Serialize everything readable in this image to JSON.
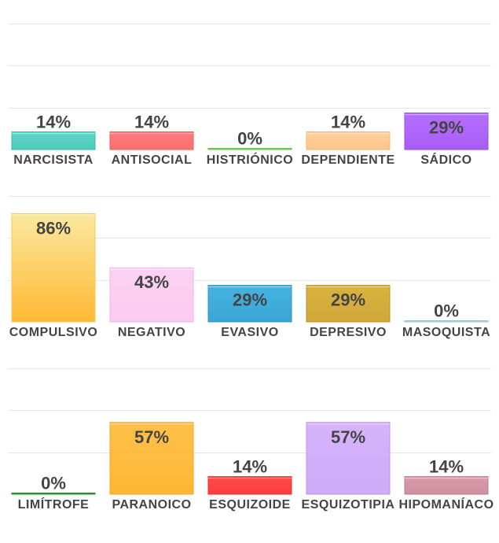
{
  "chart_data": [
    {
      "type": "bar",
      "ylim": [
        0,
        100
      ],
      "grid": true,
      "categories": [
        "NARCISISTA",
        "ANTISOCIAL",
        "HISTRIÓNICO",
        "DEPENDIENTE",
        "SÁDICO"
      ],
      "values": [
        14,
        14,
        0,
        14,
        29
      ],
      "labels": [
        "14%",
        "14%",
        "0%",
        "14%",
        "29%"
      ],
      "colors": [
        {
          "top": "#5fd6c8",
          "bottom": "#4ecbbd",
          "border": "#3fb7aa"
        },
        {
          "top": "#ff7b7b",
          "bottom": "#ff6f6f",
          "border": "#e85a5a"
        },
        {
          "top": "#8fd87a",
          "bottom": "#7ccc66",
          "border": "#6abb55"
        },
        {
          "top": "#ffd09c",
          "bottom": "#ffc58a",
          "border": "#f2b577"
        },
        {
          "top": "#b570ff",
          "bottom": "#a95cf7",
          "border": "#9448e0"
        }
      ]
    },
    {
      "type": "bar",
      "ylim": [
        0,
        100
      ],
      "grid": true,
      "categories": [
        "COMPULSIVO",
        "NEGATIVO",
        "EVASIVO",
        "DEPRESIVO",
        "MASOQUISTA"
      ],
      "values": [
        86,
        43,
        29,
        29,
        0
      ],
      "labels": [
        "86%",
        "43%",
        "29%",
        "29%",
        "0%"
      ],
      "colors": [
        {
          "top": "#fbe9a0",
          "bottom": "#ffb833",
          "border": "#f0c860"
        },
        {
          "top": "#fbd2f3",
          "bottom": "#fbcaf1",
          "border": "#eeb6e2"
        },
        {
          "top": "#46b2e0",
          "bottom": "#3aa6d6",
          "border": "#2f93c2"
        },
        {
          "top": "#d9b33f",
          "bottom": "#d0a83a",
          "border": "#b8912a"
        },
        {
          "top": "#b8dff0",
          "bottom": "#a9d6ea",
          "border": "#8fc3dc"
        }
      ]
    },
    {
      "type": "bar",
      "ylim": [
        0,
        100
      ],
      "grid": true,
      "categories": [
        "LIMÍTROFE",
        "PARANOICO",
        "ESQUIZOIDE",
        "ESQUIZOTIPIA",
        "HIPOMANÍACO"
      ],
      "values": [
        0,
        57,
        14,
        57,
        14
      ],
      "labels": [
        "0%",
        "57%",
        "14%",
        "57%",
        "14%"
      ],
      "colors": [
        {
          "top": "#3aa83a",
          "bottom": "#2e9a2e",
          "border": "#278a27"
        },
        {
          "top": "#ffc04a",
          "bottom": "#ffb733",
          "border": "#f0a52a"
        },
        {
          "top": "#ff4b4b",
          "bottom": "#ff3d3d",
          "border": "#e03030"
        },
        {
          "top": "#d6b4fb",
          "bottom": "#cfaaf8",
          "border": "#b894e8"
        },
        {
          "top": "#d89aaa",
          "bottom": "#d190a0",
          "border": "#bd7b8c"
        }
      ]
    }
  ]
}
